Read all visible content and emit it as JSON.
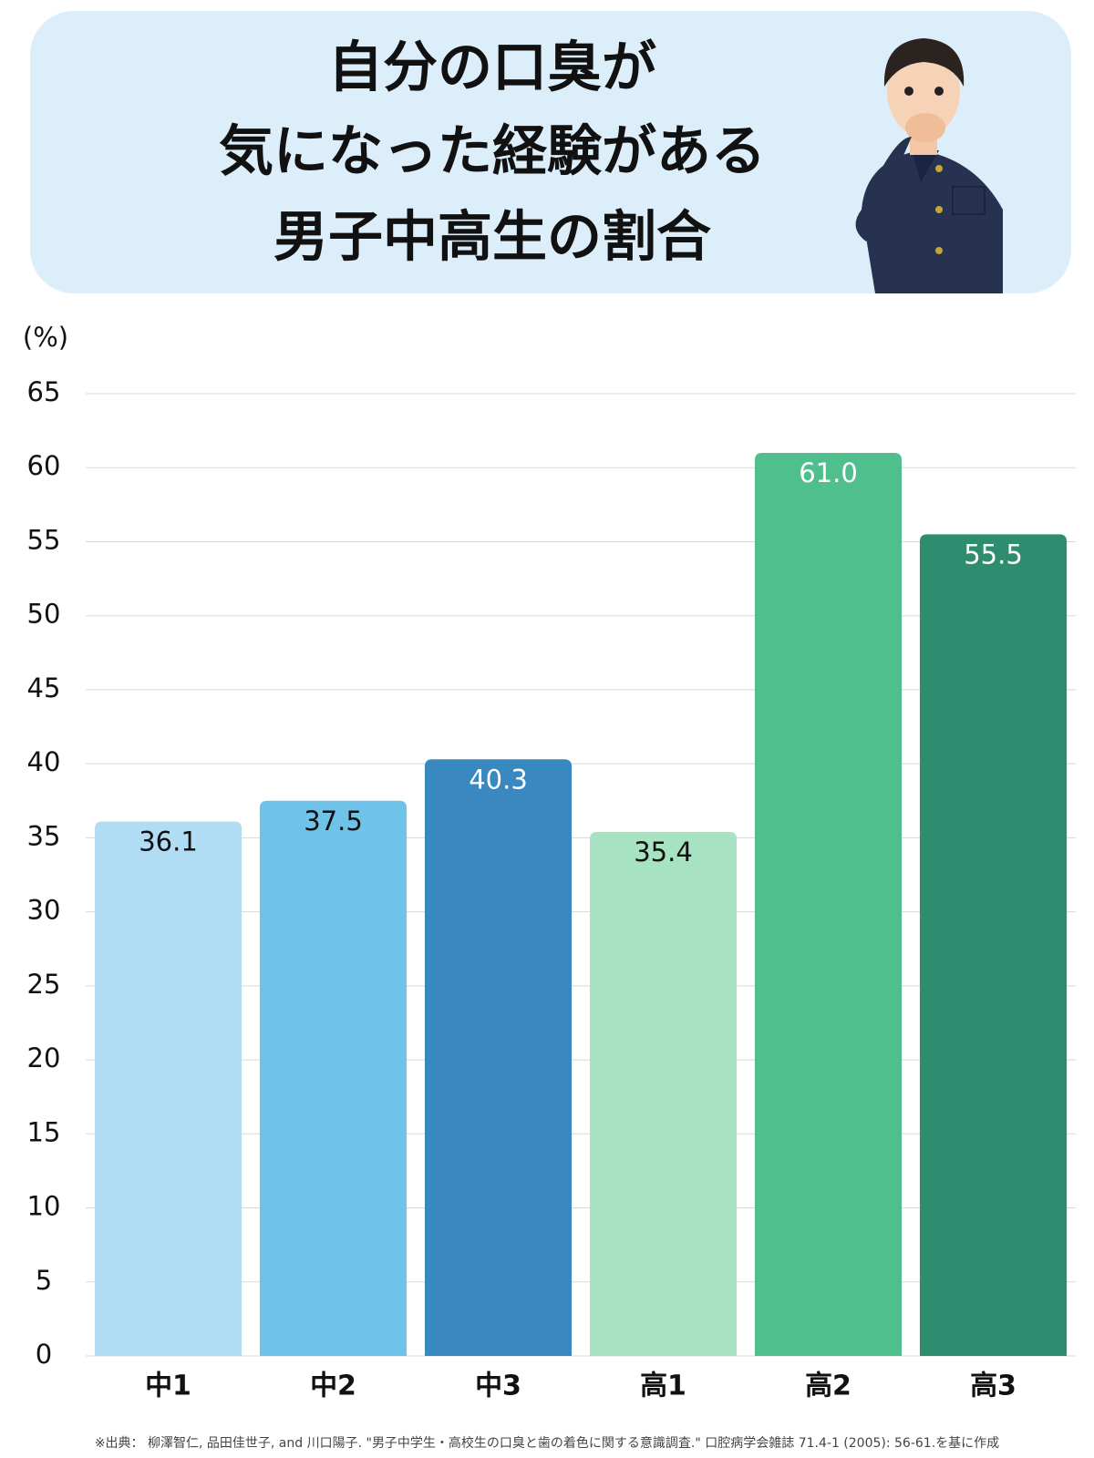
{
  "chart_data": {
    "type": "bar",
    "title": [
      "自分の口臭が",
      "気になった経験がある",
      "男子中高生の割合"
    ],
    "y_unit": "(%)",
    "categories": [
      "中1",
      "中2",
      "中3",
      "高1",
      "高2",
      "高3"
    ],
    "values": [
      36.1,
      37.5,
      40.3,
      35.4,
      61.0,
      55.5
    ],
    "value_labels": [
      "36.1",
      "37.5",
      "40.3",
      "35.4",
      "61.0",
      "55.5"
    ],
    "colors": [
      "#b0dcf4",
      "#6fc3e8",
      "#3a88c0",
      "#a7e2c2",
      "#4ebf8d",
      "#2e8d6e"
    ],
    "ylim": [
      0,
      65
    ],
    "yticks": [
      0,
      5,
      10,
      15,
      20,
      25,
      30,
      35,
      40,
      45,
      50,
      55,
      60,
      65
    ],
    "grid": true,
    "source": "※出典： 柳澤智仁, 品田佳世子, and 川口陽子. \"男子中学生・高校生の口臭と歯の着色に関する意識調査.\" 口腔病学会雑誌 71.4-1 (2005): 56-61.を基に作成"
  }
}
